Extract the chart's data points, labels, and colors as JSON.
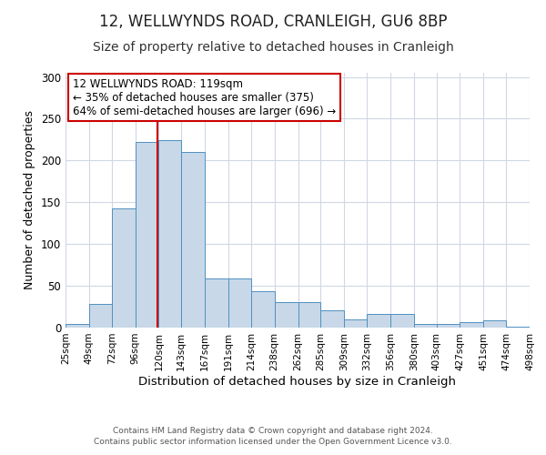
{
  "title": "12, WELLWYNDS ROAD, CRANLEIGH, GU6 8BP",
  "subtitle": "Size of property relative to detached houses in Cranleigh",
  "xlabel": "Distribution of detached houses by size in Cranleigh",
  "ylabel": "Number of detached properties",
  "bar_color": "#c8d8e8",
  "bar_edge_color": "#5090c0",
  "background_color": "#ffffff",
  "grid_color": "#d0d8e4",
  "bins": [
    25,
    49,
    72,
    96,
    120,
    143,
    167,
    191,
    214,
    238,
    262,
    285,
    309,
    332,
    356,
    380,
    403,
    427,
    451,
    474,
    498
  ],
  "values": [
    4,
    28,
    143,
    222,
    224,
    210,
    59,
    59,
    44,
    31,
    31,
    21,
    10,
    16,
    16,
    4,
    4,
    6,
    9,
    1
  ],
  "tick_labels": [
    "25sqm",
    "49sqm",
    "72sqm",
    "96sqm",
    "120sqm",
    "143sqm",
    "167sqm",
    "191sqm",
    "214sqm",
    "238sqm",
    "262sqm",
    "285sqm",
    "309sqm",
    "332sqm",
    "356sqm",
    "380sqm",
    "403sqm",
    "427sqm",
    "451sqm",
    "474sqm",
    "498sqm"
  ],
  "ylim": [
    0,
    305
  ],
  "property_line_x": 119,
  "property_line_color": "#cc0000",
  "annotation_line1": "12 WELLWYNDS ROAD: 119sqm",
  "annotation_line2": "← 35% of detached houses are smaller (375)",
  "annotation_line3": "64% of semi-detached houses are larger (696) →",
  "annotation_box_color": "#ffffff",
  "annotation_box_edge_color": "#cc0000",
  "footer_line1": "Contains HM Land Registry data © Crown copyright and database right 2024.",
  "footer_line2": "Contains public sector information licensed under the Open Government Licence v3.0.",
  "title_fontsize": 12,
  "subtitle_fontsize": 10,
  "tick_fontsize": 7.5,
  "ylabel_fontsize": 9,
  "xlabel_fontsize": 9.5,
  "annotation_fontsize": 8.5,
  "footer_fontsize": 6.5
}
